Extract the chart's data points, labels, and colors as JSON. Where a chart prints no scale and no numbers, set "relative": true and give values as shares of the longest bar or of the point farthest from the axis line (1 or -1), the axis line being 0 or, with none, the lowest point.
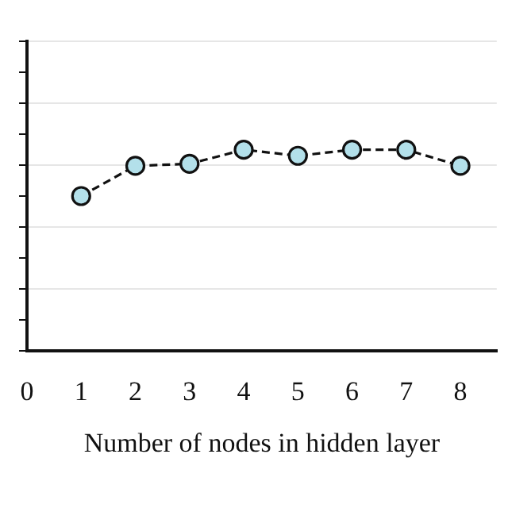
{
  "chart_data": {
    "type": "line",
    "xlabel": "Number of nodes in hidden layer",
    "x": [
      1,
      2,
      3,
      4,
      5,
      6,
      7,
      8
    ],
    "series": [
      {
        "color": "#b3e0ea",
        "values": [
          0.77,
          0.92,
          0.93,
          1,
          0.97,
          1,
          1,
          0.92
        ]
      }
    ],
    "relative": true,
    "xlim": [
      0,
      8.67
    ],
    "xticks": [
      0,
      1,
      2,
      3,
      4,
      5,
      6,
      7,
      8
    ],
    "grid": "y",
    "legend": false,
    "marker": "circle",
    "line_style": "dashed",
    "tick_labels": "x"
  }
}
